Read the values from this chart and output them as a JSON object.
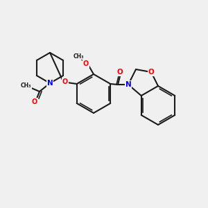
{
  "background_color": "#f0f0f0",
  "bond_color": "#1a1a1a",
  "atom_colors": {
    "N": "#0000ff",
    "O": "#ff0000",
    "C": "#1a1a1a"
  },
  "figsize": [
    3.0,
    3.0
  ],
  "dpi": 100
}
